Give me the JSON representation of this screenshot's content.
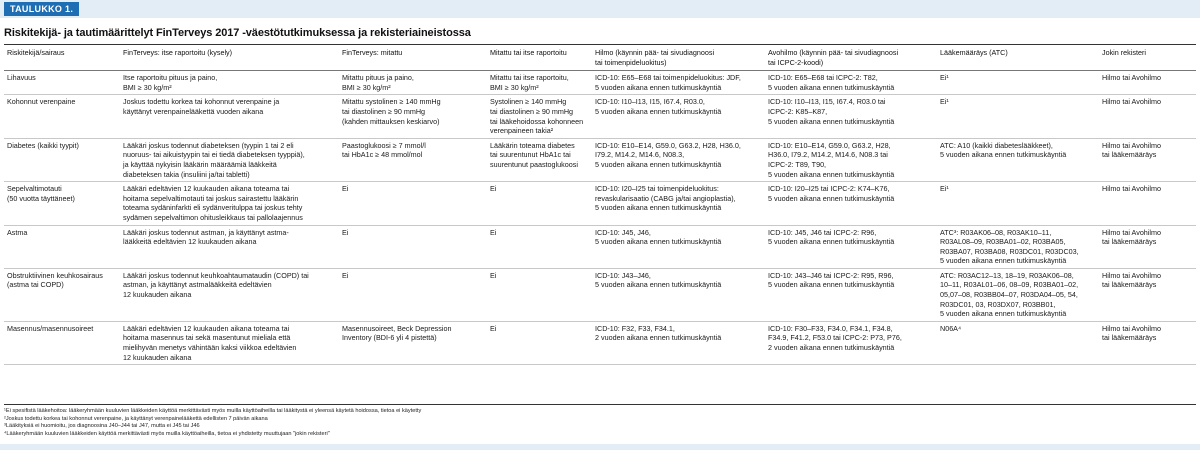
{
  "header": {
    "tab_label": "TAULUKKO 1.",
    "title": "Riskitekijä- ja tautimäärittelyt FinTerveys 2017 -väestötutkimuksessa ja rekisteriaineistossa"
  },
  "table": {
    "columns": [
      "Riskitekijä/sairaus",
      "FinTerveys: itse raportoitu (kysely)",
      "FinTerveys: mitattu",
      "Mitattu tai itse raportoitu",
      "Hilmo (käynnin pää- tai sivudiagnoosi\ntai toimenpideluokitus)",
      "Avohilmo (käynnin pää- tai sivudiagnoosi\ntai ICPC-2-koodi)",
      "Lääkemääräys (ATC)",
      "Jokin rekisteri"
    ],
    "rows": [
      {
        "cells": [
          "Lihavuus",
          "Itse raportoitu pituus ja paino,\nBMI ≥ 30 kg/m²",
          "Mitattu pituus ja paino,\nBMI ≥ 30 kg/m²",
          "Mitattu tai itse raportoitu,\nBMI ≥ 30 kg/m²",
          "ICD-10: E65–E68 tai toimenpideluokitus: JDF,\n5 vuoden aikana ennen tutkimuskäyntiä",
          "ICD-10: E65–E68 tai ICPC-2: T82,\n5 vuoden aikana ennen tutkimuskäyntiä",
          "Ei¹",
          "Hilmo tai Avohilmo"
        ]
      },
      {
        "cells": [
          "Kohonnut verenpaine",
          "Joskus todettu korkea tai kohonnut verenpaine ja\nkäyttänyt verenpainelääkettä vuoden aikana",
          "Mitattu systolinen ≥ 140 mmHg\ntai diastolinen ≥ 90 mmHg\n(kahden mittauksen keskiarvo)",
          "Systolinen ≥ 140 mmHg\ntai diastolinen ≥ 90 mmHg\ntai lääkehoidossa kohonneen\nverenpaineen takia²",
          "ICD-10: I10–I13, I15, I67.4, R03.0,\n5 vuoden aikana ennen tutkimuskäyntiä",
          "ICD-10: I10–I13, I15, I67.4, R03.0 tai\nICPC-2: K85–K87,\n5 vuoden aikana ennen tutkimuskäyntiä",
          "Ei¹",
          "Hilmo tai Avohilmo"
        ]
      },
      {
        "cells": [
          "Diabetes (kaikki tyypit)",
          "Lääkäri joskus todennut diabeteksen (tyypin 1 tai 2 eli\nnuoruus- tai aikuistyypin tai ei tiedä diabeteksen tyyppiä),\nja käyttää nykyisin lääkärin määräämiä lääkkeitä\ndiabeteksen takia (insuliini ja/tai tabletti)",
          "Paastoglukoosi ≥ 7 mmol/l\ntai HbA1c ≥ 48 mmol/mol",
          "Lääkärin toteama diabetes\ntai suurentunut HbA1c tai\nsuurentunut paastoglukoosi",
          "ICD-10: E10–E14, G59.0, G63.2, H28, H36.0,\nI79.2, M14.2, M14.6, N08.3,\n5 vuoden aikana ennen tutkimuskäyntiä",
          "ICD-10: E10–E14, G59.0, G63.2, H28,\nH36.0, I79.2, M14.2, M14.6, N08.3 tai\nICPC-2: T89, T90,\n5 vuoden aikana ennen tutkimuskäyntiä",
          "ATC: A10 (kaikki diabeteslääkkeet),\n5 vuoden aikana ennen tutkimuskäyntiä",
          "Hilmo tai Avohilmo\ntai lääkemääräys"
        ]
      },
      {
        "cells": [
          "Sepelvaltimotauti\n(50 vuotta täyttäneet)",
          "Lääkäri edeltävien 12 kuukauden aikana toteama tai\nhoitama sepelvaltimotauti tai joskus sairastettu lääkärin\ntoteama sydäninfarkti eli sydänveritulppa tai joskus tehty\nsydämen sepelvaltimon ohitusleikkaus tai pallolaajennus",
          "Ei",
          "Ei",
          "ICD-10: I20–I25 tai toimenpideluokitus:\nrevaskularisaatio (CABG ja/tai angioplastia),\n5 vuoden aikana ennen tutkimuskäyntiä",
          "ICD-10: I20–I25 tai ICPC-2: K74–K76,\n5 vuoden aikana ennen tutkimuskäyntiä",
          "Ei¹",
          "Hilmo tai Avohilmo"
        ]
      },
      {
        "cells": [
          "Astma",
          "Lääkäri joskus todennut astman, ja käyttänyt astma-\nlääkkeitä edeltävien 12 kuukauden aikana",
          "Ei",
          "Ei",
          "ICD-10: J45, J46,\n5 vuoden aikana ennen tutkimuskäyntiä",
          "ICD-10: J45, J46 tai ICPC-2: R96,\n5 vuoden aikana ennen tutkimuskäyntiä",
          "ATC³: R03AK06–08, R03AK10–11,\nR03AL08–09, R03BA01–02, R03BA05,\nR03BA07, R03BA08, R03DC01, R03DC03,\n5 vuoden aikana ennen tutkimuskäyntiä",
          "Hilmo tai Avohilmo\ntai lääkemääräys"
        ]
      },
      {
        "cells": [
          "Obstruktiivinen keuhkosairaus\n(astma tai COPD)",
          "Lääkäri joskus todennut keuhkoahtaumataudin (COPD) tai\nastman, ja käyttänyt astmalääkkeitä edeltävien\n12 kuukauden aikana",
          "Ei",
          "Ei",
          "ICD-10: J43–J46,\n5 vuoden aikana ennen tutkimuskäyntiä",
          "ICD-10: J43–J46 tai ICPC-2: R95, R96,\n5 vuoden aikana ennen tutkimuskäyntiä",
          "ATC: R03AC12–13, 18–19, R03AK06–08,\n10–11, R03AL01–06, 08–09, R03BA01–02,\n05,07–08, R03BB04–07, R03DA04–05, 54,\nR03DC01, 03, R03DX07, R03BB01,\n5 vuoden aikana ennen tutkimuskäyntiä",
          "Hilmo tai Avohilmo\ntai lääkemääräys"
        ]
      },
      {
        "cells": [
          "Masennus/masennusoireet",
          "Lääkäri edeltävien 12 kuukauden aikana toteama tai\nhoitama masennus tai sekä masentunut mieliala että\nmielihyvän menetys vähintään kaksi viikkoa edeltävien\n12 kuukauden aikana",
          "Masennusoireet, Beck Depression\nInventory (BDI-6 yli 4 pistettä)",
          "Ei",
          "ICD-10: F32, F33, F34.1,\n2 vuoden aikana ennen tutkimuskäyntiä",
          "ICD-10: F30–F33, F34.0, F34.1, F34.8,\nF34.9, F41.2, F53.0 tai ICPC-2: P73, P76,\n2 vuoden aikana ennen tutkimuskäyntiä",
          "N06A⁴",
          "Hilmo tai Avohilmo\ntai lääkemääräys"
        ]
      }
    ]
  },
  "footnotes": [
    "¹Ei spesifistä lääkehoitoa: lääkeryhmään kuuluvien lääkkeiden käyttöä merkittävästi myös muilla käyttöaiheilla tai lääkitystä ei yleensä käytetä hoidossa, tietoa ei käytetty",
    "²Joskus todettu korkea tai kohonnut verenpaine, ja käyttänyt verenpainelääkettä edellisten 7 päivän aikana",
    "³Lääkityksiä ei huomioitu, jos diagnoosina J40–J44 tai J47, mutta ei J45 tai J46",
    "⁴Lääkeryhmään kuuluvien lääkkeiden käyttöä merkittävästi myös muilla käyttöaiheilla, tietoa ei yhdistetty muuttujaan \"jokin rekisteri\""
  ],
  "colors": {
    "tab_bg": "#1f6db2",
    "bar_bg": "#e3edf6"
  }
}
